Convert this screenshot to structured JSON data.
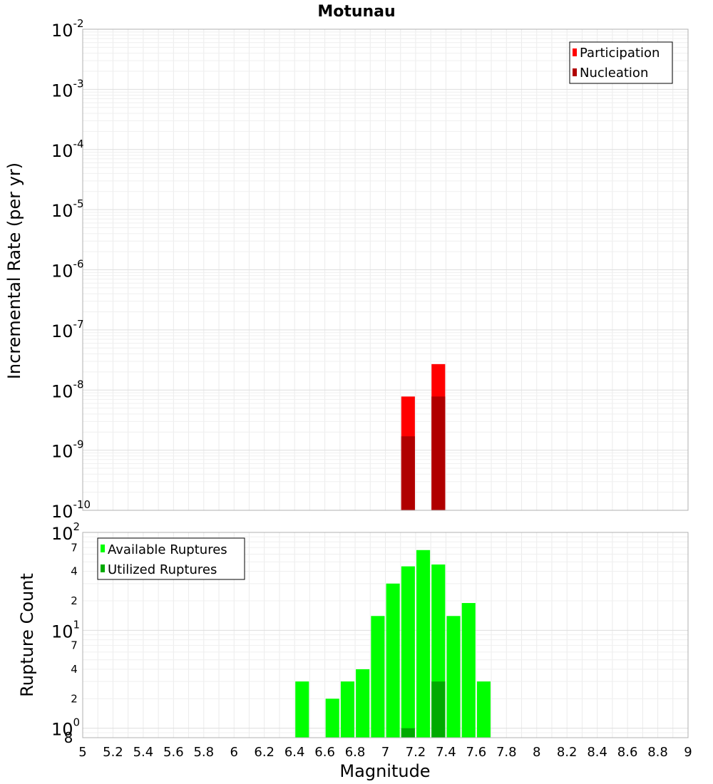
{
  "chart_data": [
    {
      "type": "bar",
      "title": "Motunau",
      "xlabel": "",
      "ylabel": "Incremental Rate (per yr)",
      "y_scale": "log",
      "xlim": [
        5,
        9
      ],
      "ylim": [
        1e-10,
        0.01
      ],
      "yticks": [
        {
          "base": "10",
          "exp": "-10",
          "value": 1e-10
        },
        {
          "base": "10",
          "exp": "-9",
          "value": 1e-09
        },
        {
          "base": "10",
          "exp": "-8",
          "value": 1e-08
        },
        {
          "base": "10",
          "exp": "-7",
          "value": 1e-07
        },
        {
          "base": "10",
          "exp": "-6",
          "value": 1e-06
        },
        {
          "base": "10",
          "exp": "-5",
          "value": 1e-05
        },
        {
          "base": "10",
          "exp": "-4",
          "value": 0.0001
        },
        {
          "base": "10",
          "exp": "-3",
          "value": 0.001
        },
        {
          "base": "10",
          "exp": "-2",
          "value": 0.01
        }
      ],
      "grid": true,
      "legend_position": "top-right",
      "series": [
        {
          "name": "Participation",
          "color": "#ff0000",
          "points": [
            {
              "x": 7.15,
              "y": 7.8e-09
            },
            {
              "x": 7.35,
              "y": 2.7e-08
            }
          ]
        },
        {
          "name": "Nucleation",
          "color": "#b00000",
          "points": [
            {
              "x": 7.15,
              "y": 1.7e-09
            },
            {
              "x": 7.35,
              "y": 7.8e-09
            }
          ]
        }
      ]
    },
    {
      "type": "bar",
      "xlabel": "Magnitude",
      "ylabel": "Rupture Count",
      "y_scale": "log",
      "xlim": [
        5,
        9
      ],
      "ylim": [
        0.8,
        100
      ],
      "yticks": [
        {
          "base": "10",
          "exp": "0",
          "value": 1
        },
        {
          "base": "10",
          "exp": "1",
          "value": 10
        },
        {
          "base": "10",
          "exp": "2",
          "value": 100
        }
      ],
      "minor_yticks": [
        {
          "label": "8",
          "value": 0.8
        },
        {
          "label": "2",
          "value": 2
        },
        {
          "label": "4",
          "value": 4
        },
        {
          "label": "7",
          "value": 7
        },
        {
          "label": "2",
          "value": 20
        },
        {
          "label": "4",
          "value": 40
        },
        {
          "label": "7",
          "value": 70
        }
      ],
      "xticks": [
        "5",
        "5.2",
        "5.4",
        "5.6",
        "5.8",
        "6",
        "6.2",
        "6.4",
        "6.6",
        "6.8",
        "7",
        "7.2",
        "7.4",
        "7.6",
        "7.8",
        "8",
        "8.2",
        "8.4",
        "8.6",
        "8.8",
        "9"
      ],
      "grid": true,
      "legend_position": "top-left",
      "series": [
        {
          "name": "Available Ruptures",
          "color": "#00ff00",
          "points": [
            {
              "x": 6.45,
              "y": 3
            },
            {
              "x": 6.55,
              "y": 0
            },
            {
              "x": 6.65,
              "y": 2
            },
            {
              "x": 6.75,
              "y": 3
            },
            {
              "x": 6.85,
              "y": 4
            },
            {
              "x": 6.95,
              "y": 14
            },
            {
              "x": 7.05,
              "y": 30
            },
            {
              "x": 7.15,
              "y": 45
            },
            {
              "x": 7.25,
              "y": 66
            },
            {
              "x": 7.35,
              "y": 47
            },
            {
              "x": 7.45,
              "y": 14
            },
            {
              "x": 7.55,
              "y": 19
            },
            {
              "x": 7.65,
              "y": 3
            }
          ]
        },
        {
          "name": "Utilized Ruptures",
          "color": "#00aa00",
          "points": [
            {
              "x": 7.15,
              "y": 1
            },
            {
              "x": 7.35,
              "y": 3
            }
          ]
        }
      ]
    }
  ]
}
